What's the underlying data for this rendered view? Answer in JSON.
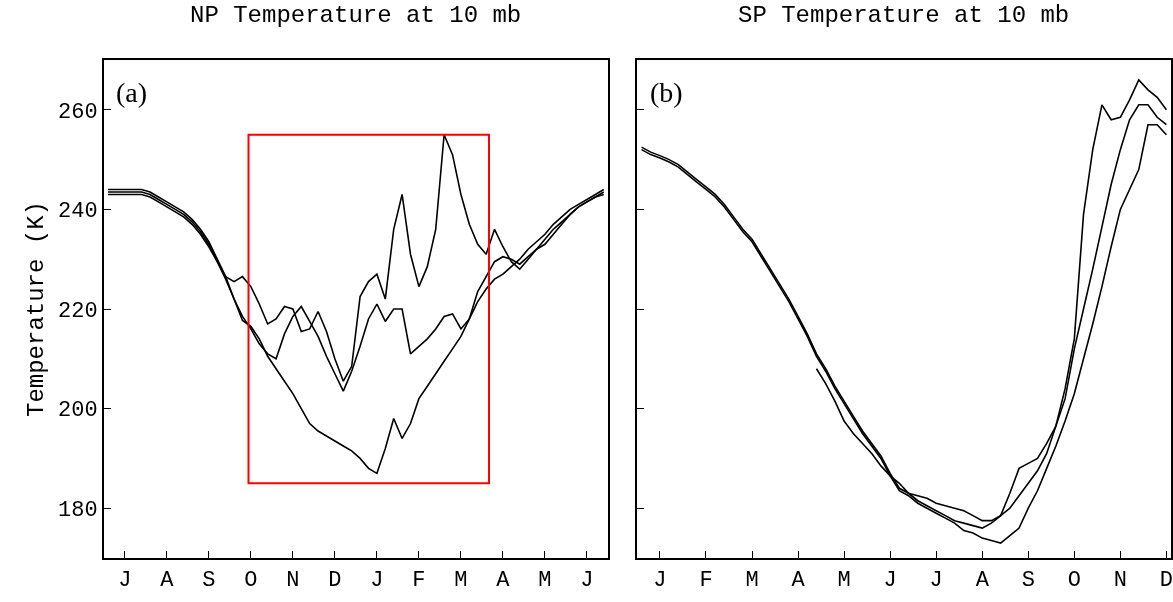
{
  "chart_data": [
    {
      "type": "line",
      "title": "NP Temperature at 10 mb",
      "ylabel": "Temperature (K)",
      "annotations": [
        "(a)"
      ],
      "ylim": [
        170,
        270
      ],
      "yticks": [
        180,
        200,
        220,
        240,
        260
      ],
      "categories": [
        null,
        null,
        "J",
        null,
        null,
        null,
        null,
        "A",
        null,
        null,
        null,
        null,
        "S",
        null,
        null,
        null,
        null,
        "O",
        null,
        null,
        null,
        null,
        "N",
        null,
        null,
        null,
        null,
        "D",
        null,
        null,
        null,
        null,
        "J",
        null,
        null,
        null,
        null,
        "F",
        null,
        null,
        null,
        null,
        "M",
        null,
        null,
        null,
        null,
        "A",
        null,
        null,
        null,
        null,
        "M",
        null,
        null,
        null,
        null,
        "J",
        null,
        null
      ],
      "series": [
        {
          "color": "#000000",
          "values": [
            244,
            244,
            244,
            244,
            244,
            243.5,
            242.5,
            241.5,
            240.5,
            239.5,
            238,
            236,
            233.5,
            230,
            226.5,
            222,
            217.7,
            216.5,
            214,
            210.5,
            208,
            205.5,
            203,
            200,
            197,
            195.5,
            194.5,
            193.5,
            192.5,
            191.5,
            190,
            188,
            187,
            192,
            198,
            194,
            197,
            202,
            204.5,
            207,
            209.5,
            212,
            214.5,
            218,
            221.5,
            224,
            226,
            227,
            228.5,
            230,
            232,
            233.5,
            235,
            237,
            238.5,
            240,
            241,
            242,
            243,
            244
          ]
        },
        {
          "color": "#000000",
          "values": [
            243.5,
            243.5,
            243.5,
            243.5,
            243.5,
            243,
            242,
            241,
            240,
            239,
            237.5,
            235.5,
            233,
            229.5,
            226,
            222,
            218.5,
            216,
            213,
            211,
            210,
            215,
            218.5,
            220.5,
            217.5,
            214.5,
            210.5,
            207,
            203.5,
            207.5,
            212.5,
            218,
            221,
            217.5,
            220,
            220,
            211,
            212.5,
            214,
            216,
            218.5,
            219,
            216,
            218,
            223.5,
            226.5,
            229.5,
            230.5,
            230,
            229,
            230.5,
            232,
            233,
            235,
            237,
            239,
            240.5,
            241.5,
            242.5,
            243.5
          ]
        },
        {
          "color": "#000000",
          "values": [
            243,
            243,
            243,
            243,
            243,
            242.5,
            241.5,
            240.5,
            239.5,
            238.5,
            237,
            235,
            232.5,
            229.5,
            226.5,
            225.5,
            226.5,
            224.5,
            221,
            217,
            218,
            220.5,
            220,
            215.5,
            216,
            219.5,
            215.5,
            210,
            205.5,
            208.5,
            222.5,
            225.5,
            227,
            222,
            236,
            243,
            231,
            224.5,
            228.5,
            236,
            255,
            251,
            243,
            237,
            233,
            231,
            236,
            232.5,
            229.5,
            228,
            230,
            232,
            234,
            236,
            237.5,
            239,
            240.5,
            241.5,
            242.5,
            243
          ]
        }
      ]
    },
    {
      "type": "line",
      "title": "SP Temperature at 10 mb",
      "annotations": [
        "(b)"
      ],
      "tick_labels": "x",
      "ylim": [
        170,
        270
      ],
      "yticks": [
        180,
        200,
        220,
        240,
        260
      ],
      "categories": [
        null,
        null,
        "J",
        null,
        null,
        null,
        null,
        "F",
        null,
        null,
        null,
        null,
        "M",
        null,
        null,
        null,
        null,
        "A",
        null,
        null,
        null,
        null,
        "M",
        null,
        null,
        null,
        null,
        "J",
        null,
        null,
        null,
        null,
        "J",
        null,
        null,
        null,
        null,
        "A",
        null,
        null,
        null,
        null,
        "S",
        null,
        null,
        null,
        null,
        "O",
        null,
        null,
        null,
        null,
        "N",
        null,
        null,
        null,
        null,
        "D"
      ],
      "series": [
        {
          "color": "#000000",
          "values": [
            252.5,
            251.5,
            250.8,
            250,
            249,
            247.5,
            246,
            244.5,
            243,
            241,
            238.5,
            236,
            234,
            231,
            228,
            225,
            222,
            218.5,
            215,
            211,
            208,
            204.5,
            201.5,
            198.5,
            195.5,
            193,
            190.5,
            187,
            184,
            183,
            181.5,
            180.5,
            179.5,
            178.5,
            177.5,
            177,
            176.5,
            176,
            177,
            178.5,
            183,
            188,
            189,
            190,
            193,
            196.5,
            204,
            214,
            239,
            252,
            261,
            258,
            258.5,
            262,
            266,
            264,
            262.5,
            260
          ]
        },
        {
          "color": "#000000",
          "values": [
            null,
            null,
            null,
            null,
            null,
            null,
            null,
            null,
            null,
            null,
            null,
            null,
            null,
            null,
            null,
            null,
            null,
            null,
            null,
            208,
            205,
            201.5,
            197.5,
            195,
            193,
            191,
            188.5,
            186.5,
            185,
            183,
            182.5,
            182,
            181,
            180.5,
            180,
            179.5,
            178.5,
            177.5,
            177.5,
            178.5,
            180,
            182.5,
            185,
            187.5,
            191,
            196.5,
            202,
            212,
            220,
            228,
            236.5,
            245,
            252,
            258,
            261,
            261,
            258.5,
            257
          ]
        },
        {
          "color": "#000000",
          "values": [
            252,
            251,
            250.3,
            249.5,
            248.5,
            247,
            245.5,
            244,
            242.5,
            240.5,
            238,
            235.5,
            233.5,
            230.5,
            227.5,
            224.5,
            221.5,
            218,
            214.5,
            210.5,
            207.5,
            204,
            201,
            198,
            195,
            192.5,
            190,
            186.5,
            183.5,
            182.5,
            181,
            180,
            179,
            178,
            177,
            175.5,
            175,
            174,
            173.5,
            173,
            174.5,
            176,
            180,
            183.5,
            188,
            192.5,
            197.5,
            203,
            210,
            217,
            224.5,
            232.5,
            240,
            244,
            248,
            257,
            257,
            255
          ]
        }
      ]
    }
  ]
}
